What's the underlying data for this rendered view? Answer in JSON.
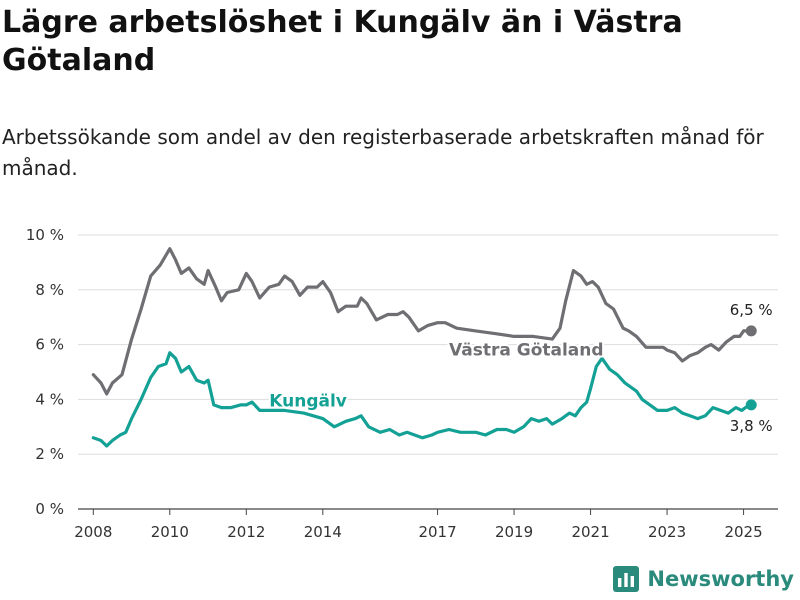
{
  "title": "Lägre arbetslöshet i Kungälv än i Västra Götaland",
  "subtitle": "Arbetssökande som andel av den registerbaserade arbetskraften månad för månad.",
  "brand": {
    "name": "Newsworthy",
    "color": "#2a8a7b"
  },
  "chart_data": {
    "type": "line",
    "title": "Lägre arbetslöshet i Kungälv än i Västra Götaland",
    "subtitle": "Arbetssökande som andel av den registerbaserade arbetskraften månad för månad.",
    "xlabel": "",
    "ylabel": "",
    "xlim": [
      2007.6,
      2025.9
    ],
    "ylim": [
      0,
      10
    ],
    "y_ticks": [
      0,
      2,
      4,
      6,
      8,
      10
    ],
    "y_tick_labels": [
      "0 %",
      "2 %",
      "4 %",
      "6 %",
      "8 %",
      "10 %"
    ],
    "x_ticks": [
      2008,
      2010,
      2012,
      2014,
      2017,
      2019,
      2021,
      2023,
      2025
    ],
    "x_tick_labels": [
      "2008",
      "2010",
      "2012",
      "2014",
      "2017",
      "2019",
      "2021",
      "2023",
      "2025"
    ],
    "grid": "horizontal",
    "legend": "inline labels",
    "series": [
      {
        "name": "Västra Götaland",
        "color": "#6e6e73",
        "end_label": "6,5 %",
        "points": [
          [
            2008.0,
            4.9
          ],
          [
            2008.2,
            4.6
          ],
          [
            2008.35,
            4.2
          ],
          [
            2008.5,
            4.6
          ],
          [
            2008.75,
            4.9
          ],
          [
            2009.0,
            6.2
          ],
          [
            2009.25,
            7.3
          ],
          [
            2009.5,
            8.5
          ],
          [
            2009.75,
            8.9
          ],
          [
            2010.0,
            9.5
          ],
          [
            2010.15,
            9.1
          ],
          [
            2010.3,
            8.6
          ],
          [
            2010.5,
            8.8
          ],
          [
            2010.7,
            8.4
          ],
          [
            2010.9,
            8.2
          ],
          [
            2011.0,
            8.7
          ],
          [
            2011.2,
            8.1
          ],
          [
            2011.35,
            7.6
          ],
          [
            2011.5,
            7.9
          ],
          [
            2011.8,
            8.0
          ],
          [
            2012.0,
            8.6
          ],
          [
            2012.15,
            8.3
          ],
          [
            2012.35,
            7.7
          ],
          [
            2012.6,
            8.1
          ],
          [
            2012.85,
            8.2
          ],
          [
            2013.0,
            8.5
          ],
          [
            2013.2,
            8.3
          ],
          [
            2013.4,
            7.8
          ],
          [
            2013.6,
            8.1
          ],
          [
            2013.85,
            8.1
          ],
          [
            2014.0,
            8.3
          ],
          [
            2014.2,
            7.9
          ],
          [
            2014.4,
            7.2
          ],
          [
            2014.6,
            7.4
          ],
          [
            2014.9,
            7.4
          ],
          [
            2015.0,
            7.7
          ],
          [
            2015.15,
            7.5
          ],
          [
            2015.4,
            6.9
          ],
          [
            2015.7,
            7.1
          ],
          [
            2015.95,
            7.1
          ],
          [
            2016.1,
            7.2
          ],
          [
            2016.25,
            7.0
          ],
          [
            2016.5,
            6.5
          ],
          [
            2016.75,
            6.7
          ],
          [
            2017.0,
            6.8
          ],
          [
            2017.2,
            6.8
          ],
          [
            2017.5,
            6.6
          ],
          [
            2018.0,
            6.5
          ],
          [
            2018.5,
            6.4
          ],
          [
            2019.0,
            6.3
          ],
          [
            2019.5,
            6.3
          ],
          [
            2020.0,
            6.2
          ],
          [
            2020.2,
            6.6
          ],
          [
            2020.35,
            7.6
          ],
          [
            2020.55,
            8.7
          ],
          [
            2020.75,
            8.5
          ],
          [
            2020.9,
            8.2
          ],
          [
            2021.05,
            8.3
          ],
          [
            2021.2,
            8.1
          ],
          [
            2021.4,
            7.5
          ],
          [
            2021.6,
            7.3
          ],
          [
            2021.85,
            6.6
          ],
          [
            2022.0,
            6.5
          ],
          [
            2022.2,
            6.3
          ],
          [
            2022.45,
            5.9
          ],
          [
            2022.7,
            5.9
          ],
          [
            2022.9,
            5.9
          ],
          [
            2023.0,
            5.8
          ],
          [
            2023.2,
            5.7
          ],
          [
            2023.4,
            5.4
          ],
          [
            2023.6,
            5.6
          ],
          [
            2023.8,
            5.7
          ],
          [
            2024.0,
            5.9
          ],
          [
            2024.15,
            6.0
          ],
          [
            2024.35,
            5.8
          ],
          [
            2024.55,
            6.1
          ],
          [
            2024.75,
            6.3
          ],
          [
            2024.9,
            6.3
          ],
          [
            2025.0,
            6.5
          ],
          [
            2025.2,
            6.5
          ]
        ]
      },
      {
        "name": "Kungälv",
        "color": "#14a195",
        "end_label": "3,8 %",
        "points": [
          [
            2008.0,
            2.6
          ],
          [
            2008.2,
            2.5
          ],
          [
            2008.35,
            2.3
          ],
          [
            2008.5,
            2.5
          ],
          [
            2008.7,
            2.7
          ],
          [
            2008.85,
            2.8
          ],
          [
            2009.0,
            3.3
          ],
          [
            2009.25,
            4.0
          ],
          [
            2009.5,
            4.8
          ],
          [
            2009.7,
            5.2
          ],
          [
            2009.9,
            5.3
          ],
          [
            2010.0,
            5.7
          ],
          [
            2010.15,
            5.5
          ],
          [
            2010.3,
            5.0
          ],
          [
            2010.5,
            5.2
          ],
          [
            2010.7,
            4.7
          ],
          [
            2010.9,
            4.6
          ],
          [
            2011.0,
            4.7
          ],
          [
            2011.15,
            3.8
          ],
          [
            2011.35,
            3.7
          ],
          [
            2011.6,
            3.7
          ],
          [
            2011.85,
            3.8
          ],
          [
            2012.0,
            3.8
          ],
          [
            2012.15,
            3.9
          ],
          [
            2012.35,
            3.6
          ],
          [
            2012.6,
            3.6
          ],
          [
            2013.0,
            3.6
          ],
          [
            2013.5,
            3.5
          ],
          [
            2014.0,
            3.3
          ],
          [
            2014.3,
            3.0
          ],
          [
            2014.6,
            3.2
          ],
          [
            2014.85,
            3.3
          ],
          [
            2015.0,
            3.4
          ],
          [
            2015.2,
            3.0
          ],
          [
            2015.5,
            2.8
          ],
          [
            2015.75,
            2.9
          ],
          [
            2016.0,
            2.7
          ],
          [
            2016.2,
            2.8
          ],
          [
            2016.4,
            2.7
          ],
          [
            2016.6,
            2.6
          ],
          [
            2016.85,
            2.7
          ],
          [
            2017.0,
            2.8
          ],
          [
            2017.3,
            2.9
          ],
          [
            2017.6,
            2.8
          ],
          [
            2018.0,
            2.8
          ],
          [
            2018.25,
            2.7
          ],
          [
            2018.55,
            2.9
          ],
          [
            2018.8,
            2.9
          ],
          [
            2019.0,
            2.8
          ],
          [
            2019.25,
            3.0
          ],
          [
            2019.45,
            3.3
          ],
          [
            2019.65,
            3.2
          ],
          [
            2019.85,
            3.3
          ],
          [
            2020.0,
            3.1
          ],
          [
            2020.25,
            3.3
          ],
          [
            2020.45,
            3.5
          ],
          [
            2020.6,
            3.4
          ],
          [
            2020.75,
            3.7
          ],
          [
            2020.9,
            3.9
          ],
          [
            2021.0,
            4.4
          ],
          [
            2021.15,
            5.2
          ],
          [
            2021.3,
            5.5
          ],
          [
            2021.5,
            5.1
          ],
          [
            2021.7,
            4.9
          ],
          [
            2021.9,
            4.6
          ],
          [
            2022.0,
            4.5
          ],
          [
            2022.2,
            4.3
          ],
          [
            2022.35,
            4.0
          ],
          [
            2022.55,
            3.8
          ],
          [
            2022.75,
            3.6
          ],
          [
            2023.0,
            3.6
          ],
          [
            2023.2,
            3.7
          ],
          [
            2023.4,
            3.5
          ],
          [
            2023.6,
            3.4
          ],
          [
            2023.8,
            3.3
          ],
          [
            2024.0,
            3.4
          ],
          [
            2024.2,
            3.7
          ],
          [
            2024.4,
            3.6
          ],
          [
            2024.6,
            3.5
          ],
          [
            2024.8,
            3.7
          ],
          [
            2024.95,
            3.6
          ],
          [
            2025.05,
            3.7
          ],
          [
            2025.2,
            3.8
          ]
        ]
      }
    ]
  }
}
